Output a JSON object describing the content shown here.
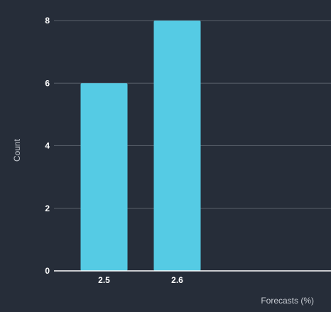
{
  "chart_data": {
    "type": "bar",
    "categories": [
      "2.5",
      "2.6"
    ],
    "values": [
      6,
      8
    ],
    "xlabel": "Forecasts (%)",
    "ylabel": "Count",
    "ylim": [
      0,
      8
    ],
    "yticks": [
      "0",
      "2",
      "4",
      "6",
      "8"
    ],
    "grid": true,
    "bar_color": "#55cbe4",
    "gridline_color": "#5a616c",
    "axis_color": "#ffffff",
    "background_color": "#262d39"
  }
}
